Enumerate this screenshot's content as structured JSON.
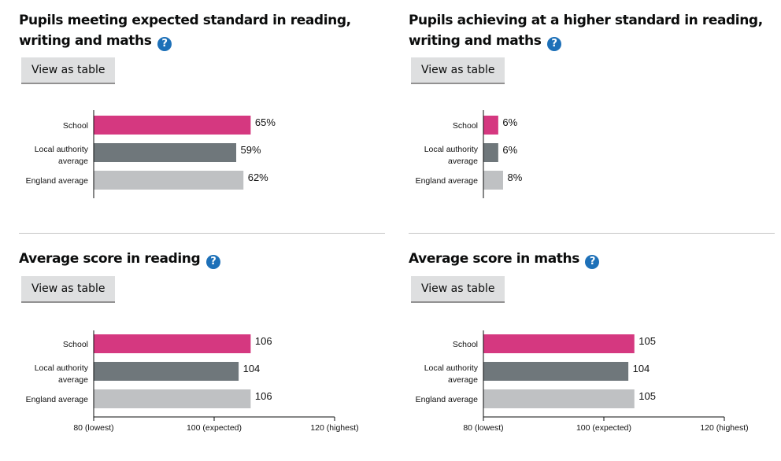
{
  "panels": [
    {
      "title": "Pupils meeting expected standard in reading, writing and maths",
      "help_icon": "?",
      "button": "View as table"
    },
    {
      "title": "Pupils achieving at a higher standard in reading, writing and maths",
      "help_icon": "?",
      "button": "View as table"
    },
    {
      "title": "Average score in reading",
      "help_icon": "?",
      "button": "View as table"
    },
    {
      "title": "Average score in maths",
      "help_icon": "?",
      "button": "View as table"
    }
  ],
  "colors": {
    "school": "#d53880",
    "local": "#6f777b",
    "england": "#bfc1c3",
    "help": "#1d70b8"
  },
  "chart_data": [
    {
      "type": "bar",
      "title": "Pupils meeting expected standard in reading, writing and maths",
      "categories": [
        [
          "School"
        ],
        [
          "Local authority",
          "average"
        ],
        [
          "England average"
        ]
      ],
      "values": [
        65,
        59,
        62
      ],
      "labels": [
        "65%",
        "59%",
        "62%"
      ],
      "xlim": [
        0,
        100
      ],
      "ticks": []
    },
    {
      "type": "bar",
      "title": "Pupils achieving at a higher standard in reading, writing and maths",
      "categories": [
        [
          "School"
        ],
        [
          "Local authority",
          "average"
        ],
        [
          "England average"
        ]
      ],
      "values": [
        6,
        6,
        8
      ],
      "labels": [
        "6%",
        "6%",
        "8%"
      ],
      "xlim": [
        0,
        100
      ],
      "ticks": []
    },
    {
      "type": "bar",
      "title": "Average score in reading",
      "categories": [
        [
          "School"
        ],
        [
          "Local authority",
          "average"
        ],
        [
          "England average"
        ]
      ],
      "values": [
        106,
        104,
        106
      ],
      "labels": [
        "106",
        "104",
        "106"
      ],
      "xlim": [
        80,
        120
      ],
      "ticks": [
        {
          "value": 80,
          "label": "80 (lowest)"
        },
        {
          "value": 100,
          "label": "100 (expected)"
        },
        {
          "value": 120,
          "label": "120 (highest)"
        }
      ]
    },
    {
      "type": "bar",
      "title": "Average score in maths",
      "categories": [
        [
          "School"
        ],
        [
          "Local authority",
          "average"
        ],
        [
          "England average"
        ]
      ],
      "values": [
        105,
        104,
        105
      ],
      "labels": [
        "105",
        "104",
        "105"
      ],
      "xlim": [
        80,
        120
      ],
      "ticks": [
        {
          "value": 80,
          "label": "80 (lowest)"
        },
        {
          "value": 100,
          "label": "100 (expected)"
        },
        {
          "value": 120,
          "label": "120 (highest)"
        }
      ]
    }
  ]
}
